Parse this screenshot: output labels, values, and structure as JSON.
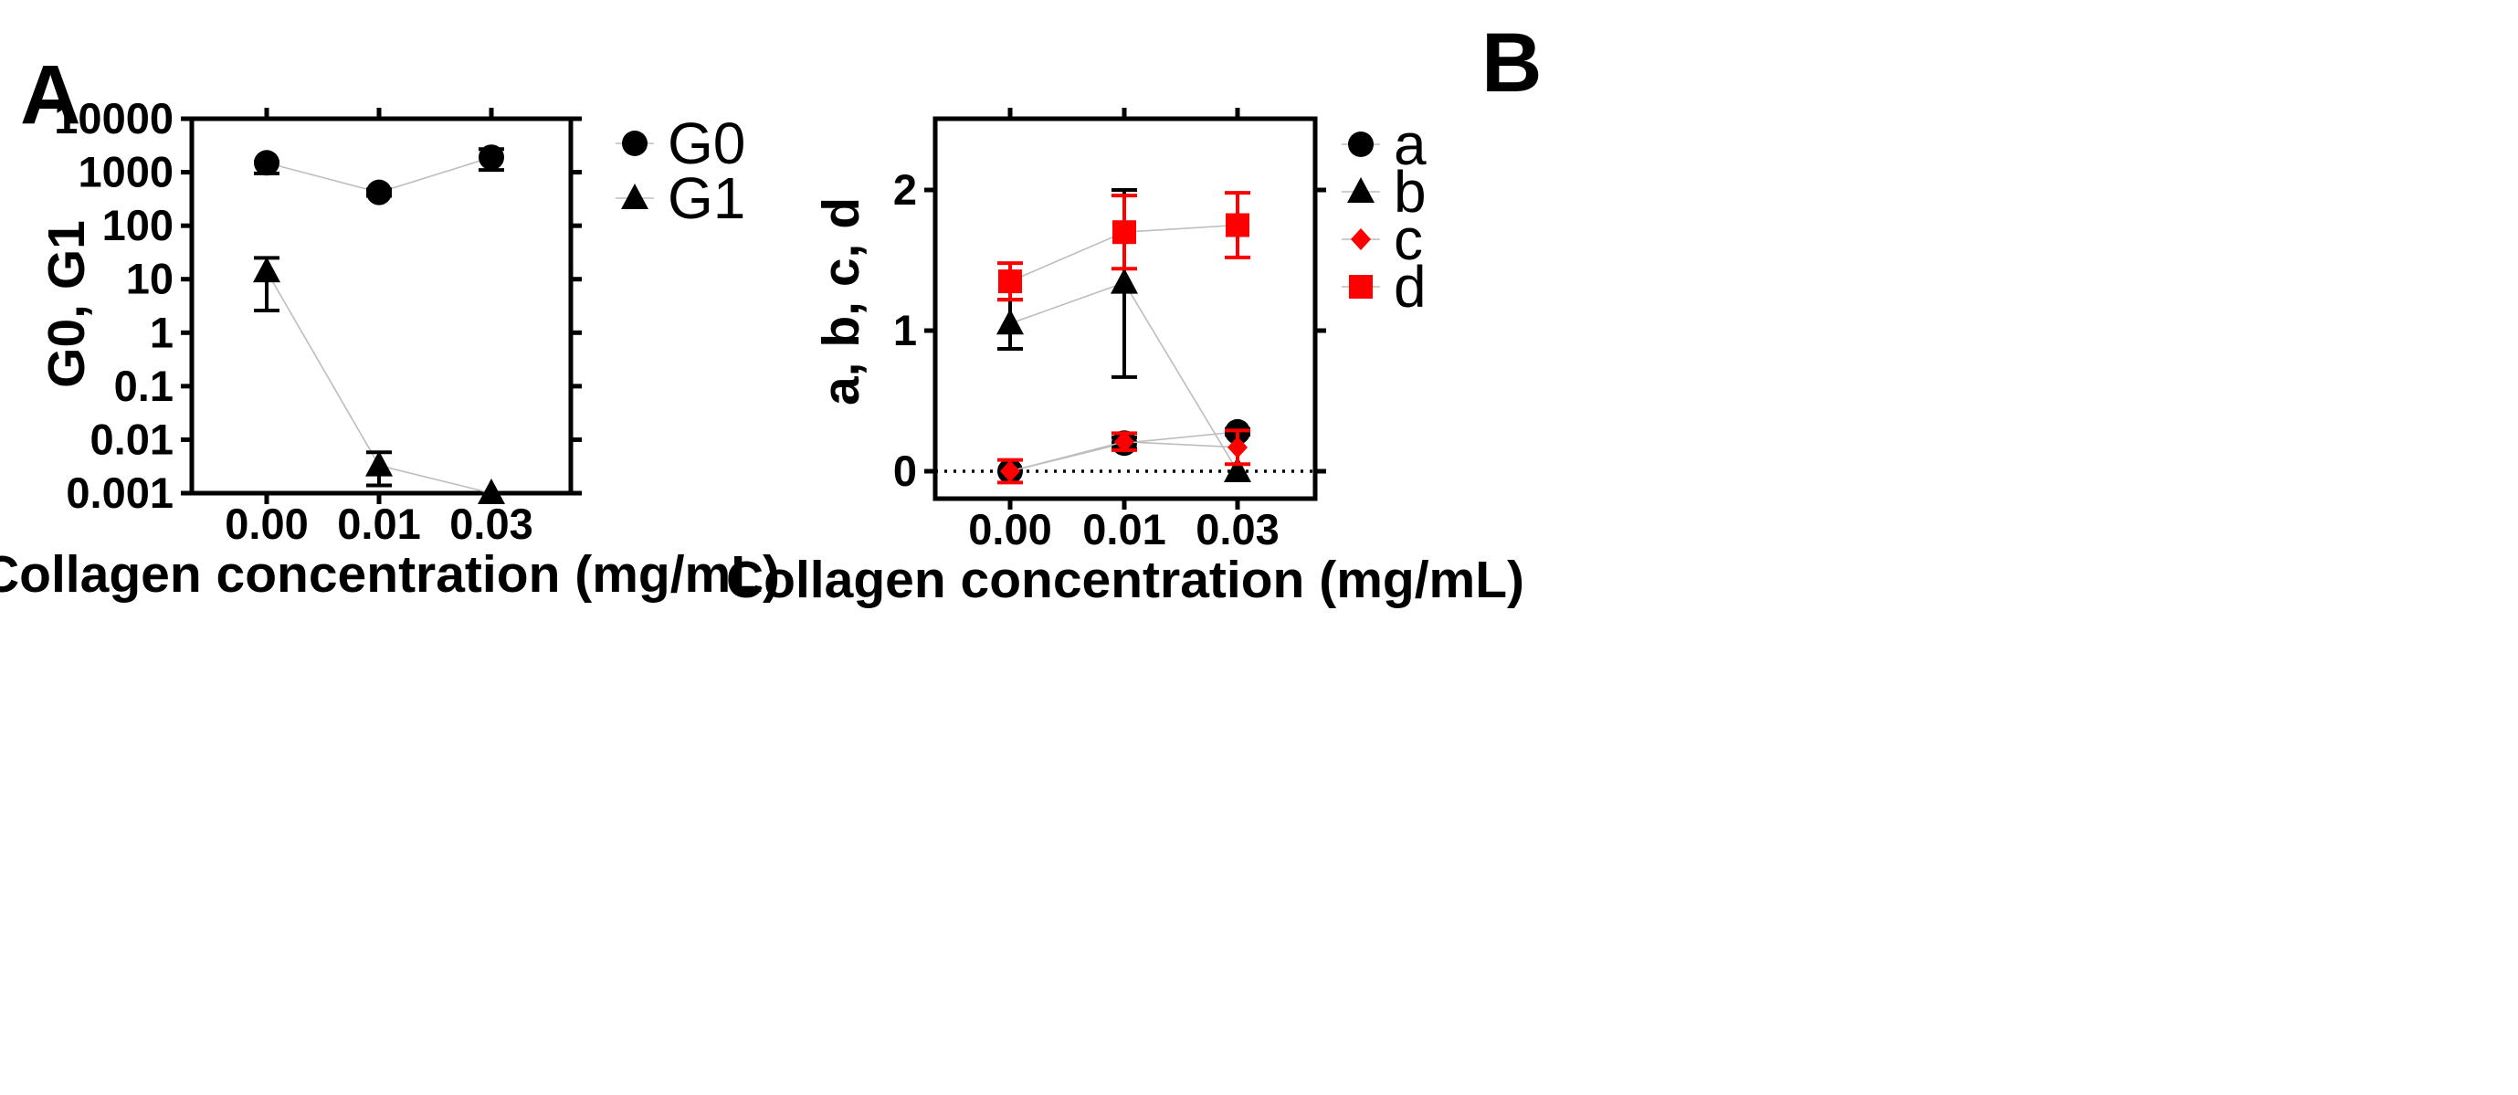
{
  "chart_data": [
    {
      "panel": "A",
      "type": "line",
      "xlabel": "Collagen concentration (mg/mL)",
      "ylabel": "G0, G1",
      "yscale": "log",
      "ylim": [
        0.001,
        10000
      ],
      "categories": [
        "0.00",
        "0.01",
        "0.03"
      ],
      "yticks": [
        "10000",
        "1000",
        "100",
        "10",
        "1",
        "0.1",
        "0.01",
        "0.001"
      ],
      "yticks_values": [
        10000,
        1000,
        100,
        10,
        1,
        0.1,
        0.01,
        0.001
      ],
      "series": [
        {
          "name": "G0",
          "marker": "circle",
          "color": "#000000",
          "values": [
            1500,
            420,
            1900
          ],
          "err_low": [
            950,
            360,
            1100
          ],
          "err_high": [
            1550,
            480,
            2700
          ]
        },
        {
          "name": "G1",
          "marker": "triangle",
          "color": "#000000",
          "values": [
            14,
            0.0033,
            0.001
          ],
          "err_low": [
            2.6,
            0.0014,
            0.001
          ],
          "err_high": [
            25,
            0.0058,
            0.001
          ]
        }
      ],
      "legend_position": "outside-right"
    },
    {
      "panel": "B",
      "type": "line",
      "xlabel": "Collagen concentration (mg/mL)",
      "ylabel": "a, b, c, d",
      "ylim": [
        -0.2,
        2.5
      ],
      "categories": [
        "0.00",
        "0.01",
        "0.03"
      ],
      "yticks": [
        "0",
        "1",
        "2"
      ],
      "yticks_values": [
        0,
        1,
        2
      ],
      "reference_line": 0,
      "series": [
        {
          "name": "a",
          "marker": "circle",
          "color": "#000000",
          "values": [
            0,
            0.2,
            0.28
          ],
          "err_low": [
            0,
            0.16,
            0.26
          ],
          "err_high": [
            0,
            0.24,
            0.3
          ]
        },
        {
          "name": "b",
          "marker": "triangle",
          "color": "#000000",
          "values": [
            1.05,
            1.34,
            0
          ],
          "err_low": [
            0.87,
            0.67,
            0
          ],
          "err_high": [
            1.22,
            2.0,
            0
          ]
        },
        {
          "name": "c",
          "marker": "diamond",
          "color": "#ff0000",
          "values": [
            0,
            0.21,
            0.17
          ],
          "err_low": [
            -0.08,
            0.15,
            0.05
          ],
          "err_high": [
            0.08,
            0.27,
            0.29
          ]
        },
        {
          "name": "d",
          "marker": "square",
          "color": "#ff0000",
          "values": [
            1.35,
            1.7,
            1.75
          ],
          "err_low": [
            1.22,
            1.44,
            1.52
          ],
          "err_high": [
            1.48,
            1.96,
            1.98
          ]
        }
      ],
      "legend_position": "outside-right"
    }
  ]
}
